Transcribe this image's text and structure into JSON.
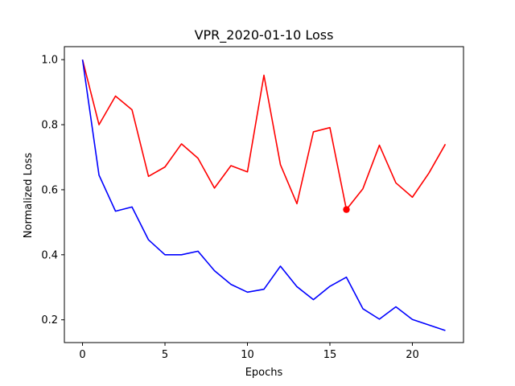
{
  "chart_data": {
    "type": "line",
    "title": "VPR_2020-01-10 Loss",
    "xlabel": "Epochs",
    "ylabel": "Normalized Loss",
    "xlim": [
      -1.1,
      23.1
    ],
    "ylim": [
      0.13,
      1.04
    ],
    "x_ticks": [
      0,
      5,
      10,
      15,
      20
    ],
    "y_ticks": [
      0.2,
      0.4,
      0.6,
      0.8,
      1.0
    ],
    "y_tick_labels": [
      "0.2",
      "0.4",
      "0.6",
      "0.8",
      "1.0"
    ],
    "grid": false,
    "x": [
      0,
      1,
      2,
      3,
      4,
      5,
      6,
      7,
      8,
      9,
      10,
      11,
      12,
      13,
      14,
      15,
      16,
      17,
      18,
      19,
      20,
      21,
      22
    ],
    "series": [
      {
        "color": "#ff0000",
        "values": [
          1.0,
          0.8,
          0.888,
          0.846,
          0.641,
          0.67,
          0.741,
          0.697,
          0.605,
          0.674,
          0.655,
          0.952,
          0.677,
          0.557,
          0.778,
          0.791,
          0.539,
          0.603,
          0.737,
          0.621,
          0.577,
          0.651,
          0.74
        ]
      },
      {
        "color": "#0000ff",
        "values": [
          1.0,
          0.645,
          0.534,
          0.547,
          0.446,
          0.4,
          0.4,
          0.411,
          0.351,
          0.309,
          0.285,
          0.294,
          0.365,
          0.302,
          0.262,
          0.303,
          0.331,
          0.234,
          0.202,
          0.24,
          0.201,
          0.184,
          0.167
        ]
      }
    ],
    "markers": [
      {
        "series_color": "#ff0000",
        "x": 16,
        "y": 0.539
      }
    ]
  }
}
